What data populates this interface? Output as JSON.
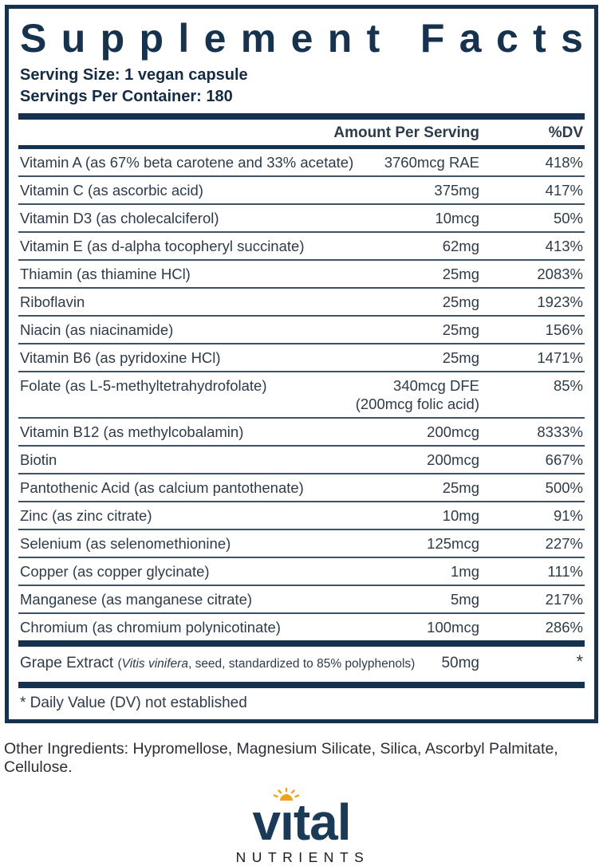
{
  "colors": {
    "navy": "#16324f",
    "body_text": "#2e3b49",
    "separator": "#3e5265",
    "gold": "#f0a31a",
    "tagline_black": "#1b1b1b"
  },
  "label": {
    "title": "Supplement Facts",
    "serving_size": "Serving Size: 1 vegan capsule",
    "servings_per_container": "Servings Per Container: 180",
    "header": {
      "amount": "Amount Per Serving",
      "dv": "%DV"
    },
    "rows": [
      {
        "name": "Vitamin A (as 67% beta carotene and 33% acetate)",
        "amount": "3760mcg RAE",
        "dv": "418%"
      },
      {
        "name": "Vitamin C (as ascorbic acid)",
        "amount": "375mg",
        "dv": "417%"
      },
      {
        "name": "Vitamin D3 (as cholecalciferol)",
        "amount": "10mcg",
        "dv": "50%"
      },
      {
        "name": "Vitamin E (as d-alpha tocopheryl succinate)",
        "amount": "62mg",
        "dv": "413%"
      },
      {
        "name": "Thiamin (as thiamine HCl)",
        "amount": "25mg",
        "dv": "2083%"
      },
      {
        "name": "Riboflavin",
        "amount": "25mg",
        "dv": "1923%"
      },
      {
        "name": "Niacin (as niacinamide)",
        "amount": "25mg",
        "dv": "156%"
      },
      {
        "name": "Vitamin B6 (as pyridoxine HCl)",
        "amount": "25mg",
        "dv": "1471%"
      },
      {
        "name": "Folate (as L-5-methyltetrahydrofolate)",
        "amount": "340mcg DFE",
        "amount2": "(200mcg folic acid)",
        "dv": "85%"
      },
      {
        "name": "Vitamin B12 (as methylcobalamin)",
        "amount": "200mcg",
        "dv": "8333%"
      },
      {
        "name": "Biotin",
        "amount": "200mcg",
        "dv": "667%"
      },
      {
        "name": "Pantothenic Acid (as calcium pantothenate)",
        "amount": "25mg",
        "dv": "500%"
      },
      {
        "name": "Zinc (as zinc citrate)",
        "amount": "10mg",
        "dv": "91%"
      },
      {
        "name": "Selenium (as selenomethionine)",
        "amount": "125mcg",
        "dv": "227%"
      },
      {
        "name": "Copper (as copper glycinate)",
        "amount": "1mg",
        "dv": "111%"
      },
      {
        "name": "Manganese (as manganese citrate)",
        "amount": "5mg",
        "dv": "217%"
      },
      {
        "name": "Chromium (as chromium polynicotinate)",
        "amount": "100mcg",
        "dv": "286%"
      }
    ],
    "grape_row": {
      "name": "Grape Extract",
      "paren_open": "(",
      "latin": "Vitis vinifera",
      "detail_rest": ", seed, standardized to 85% polyphenols)",
      "amount": "50mg",
      "dv": "*"
    },
    "footnote": "* Daily Value (DV) not established",
    "other_ingredients": "Other Ingredients: Hypromellose, Magnesium Silicate, Silica, Ascorbyl Palmitate, Cellulose."
  },
  "logo": {
    "word_pre": "v",
    "word_i": "ı",
    "word_post": "tal",
    "tagline": "NUTRIENTS",
    "sun_icon": "sun-icon"
  }
}
